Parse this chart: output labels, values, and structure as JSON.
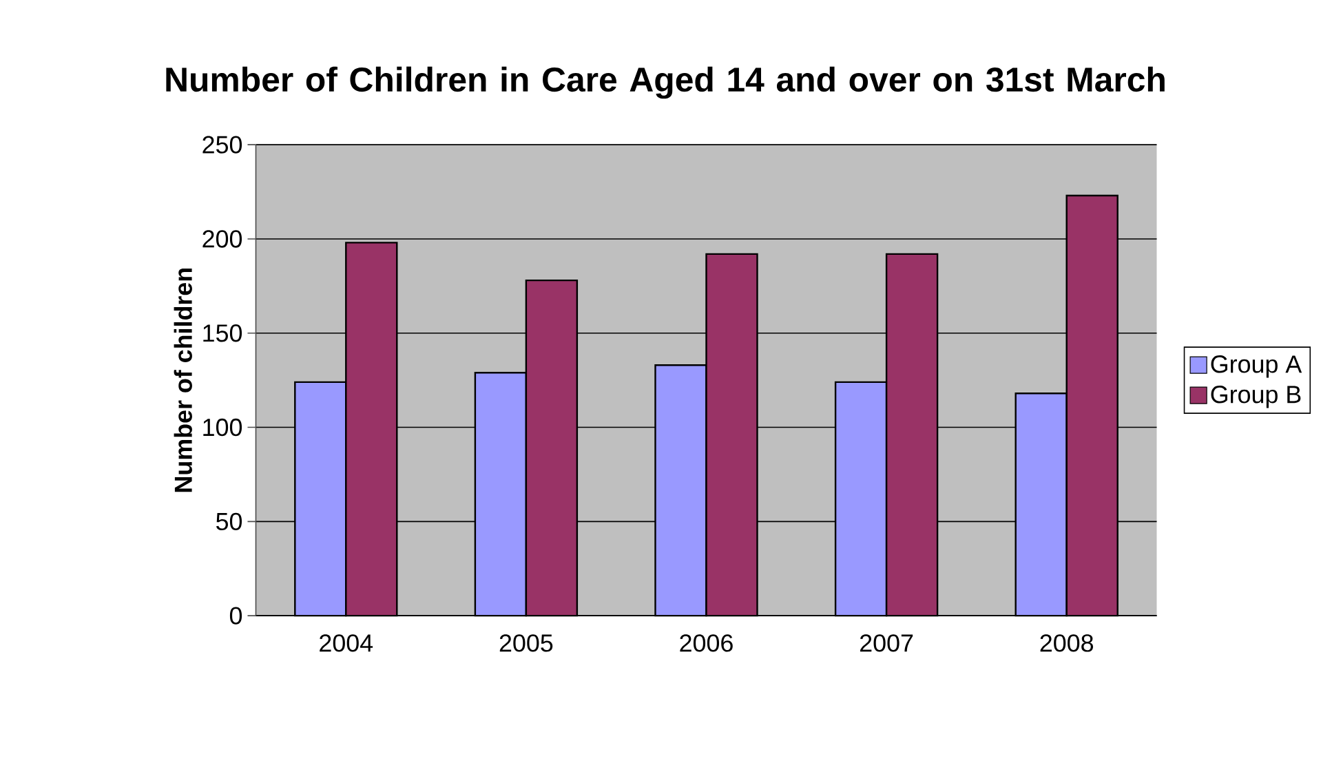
{
  "chart_data": {
    "type": "bar",
    "title": "Number of Children in Care Aged 14 and over on 31st March",
    "ylabel": "Number of children",
    "categories": [
      "2004",
      "2005",
      "2006",
      "2007",
      "2008"
    ],
    "series": [
      {
        "name": "Group A",
        "color": "#9999ff",
        "values": [
          124,
          129,
          133,
          124,
          118
        ]
      },
      {
        "name": "Group B",
        "color": "#993366",
        "values": [
          198,
          178,
          192,
          192,
          223
        ]
      }
    ],
    "ylim": [
      0,
      250
    ],
    "yticks": [
      0,
      50,
      100,
      150,
      200,
      250
    ],
    "grid": "y",
    "legend": "right"
  }
}
